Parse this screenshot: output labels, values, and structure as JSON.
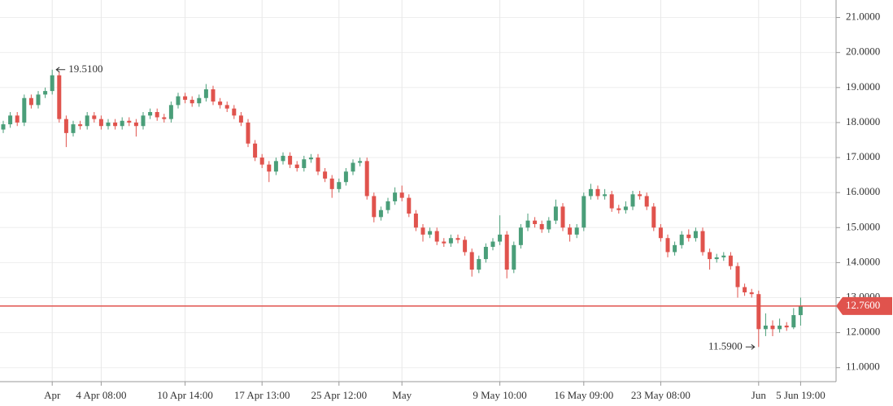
{
  "chart_data": {
    "type": "candlestick",
    "categories": [
      null,
      null,
      null,
      null,
      null,
      null,
      null,
      "Apr",
      null,
      null,
      null,
      null,
      null,
      null,
      "4 Apr 08:00",
      null,
      null,
      null,
      null,
      null,
      null,
      null,
      null,
      null,
      null,
      null,
      "10 Apr 14:00",
      null,
      null,
      null,
      null,
      null,
      null,
      null,
      null,
      null,
      null,
      "17 Apr 13:00",
      null,
      null,
      null,
      null,
      null,
      null,
      null,
      null,
      null,
      null,
      "25 Apr 12:00",
      null,
      null,
      null,
      null,
      null,
      null,
      null,
      null,
      "May",
      null,
      null,
      null,
      null,
      null,
      null,
      null,
      null,
      null,
      null,
      null,
      null,
      null,
      "9 May 10:00",
      null,
      null,
      null,
      null,
      null,
      null,
      null,
      null,
      null,
      null,
      null,
      "16 May 09:00",
      null,
      null,
      null,
      null,
      null,
      null,
      null,
      null,
      null,
      null,
      "23 May 08:00",
      null,
      null,
      null,
      null,
      null,
      null,
      null,
      null,
      null,
      null,
      null,
      null,
      null,
      "Jun",
      null,
      null,
      null,
      null,
      null,
      "5 Jun 19:00"
    ],
    "open": [
      17.8,
      17.95,
      18.2,
      18.0,
      18.7,
      18.5,
      18.8,
      18.9,
      19.35,
      18.1,
      17.7,
      17.95,
      17.9,
      18.2,
      18.1,
      17.9,
      18.0,
      17.9,
      18.05,
      18.0,
      17.9,
      18.2,
      18.3,
      18.15,
      18.1,
      18.5,
      18.75,
      18.65,
      18.55,
      18.7,
      18.95,
      18.6,
      18.5,
      18.4,
      18.2,
      18.0,
      17.4,
      17.0,
      16.8,
      16.6,
      16.9,
      17.05,
      16.8,
      16.7,
      16.95,
      17.0,
      16.6,
      16.4,
      16.1,
      16.3,
      16.6,
      16.85,
      16.9,
      15.9,
      15.3,
      15.5,
      15.75,
      16.0,
      15.85,
      15.4,
      15.0,
      14.8,
      14.9,
      14.6,
      14.55,
      14.7,
      14.65,
      14.3,
      13.8,
      14.1,
      14.45,
      14.6,
      14.8,
      13.8,
      14.5,
      15.0,
      15.2,
      15.1,
      14.95,
      15.2,
      15.6,
      15.0,
      14.8,
      15.0,
      15.9,
      16.1,
      15.9,
      15.95,
      15.55,
      15.5,
      15.6,
      15.95,
      15.9,
      15.6,
      15.0,
      14.7,
      14.3,
      14.5,
      14.8,
      14.7,
      14.9,
      14.3,
      14.1,
      14.15,
      14.2,
      13.9,
      13.3,
      13.15,
      13.1,
      12.1,
      12.2,
      12.1,
      12.2,
      12.15,
      12.5
    ],
    "high": [
      18.05,
      18.3,
      18.3,
      18.8,
      18.8,
      18.9,
      19.0,
      19.51,
      19.45,
      18.2,
      18.05,
      18.05,
      18.3,
      18.3,
      18.2,
      18.1,
      18.1,
      18.15,
      18.15,
      18.1,
      18.3,
      18.4,
      18.4,
      18.25,
      18.6,
      18.85,
      18.85,
      18.75,
      18.8,
      19.1,
      19.05,
      18.7,
      18.6,
      18.5,
      18.3,
      18.1,
      17.5,
      17.1,
      16.9,
      17.0,
      17.15,
      17.15,
      16.9,
      17.05,
      17.1,
      17.1,
      16.7,
      16.5,
      16.4,
      16.7,
      16.95,
      17.0,
      17.0,
      16.0,
      15.6,
      15.85,
      16.15,
      16.2,
      15.95,
      15.5,
      15.1,
      15.0,
      15.0,
      14.7,
      14.8,
      14.8,
      14.75,
      14.4,
      14.2,
      14.55,
      14.7,
      15.35,
      14.9,
      14.6,
      15.1,
      15.4,
      15.3,
      15.2,
      15.3,
      15.8,
      15.7,
      15.1,
      15.1,
      16.0,
      16.25,
      16.2,
      16.1,
      16.05,
      15.65,
      15.75,
      16.05,
      16.05,
      16.0,
      15.7,
      15.1,
      14.8,
      14.6,
      14.9,
      14.95,
      15.0,
      15.0,
      14.4,
      14.25,
      14.3,
      14.3,
      14.0,
      13.4,
      13.25,
      13.2,
      12.55,
      12.35,
      12.4,
      12.3,
      12.7,
      13.0
    ],
    "low": [
      17.7,
      17.85,
      17.9,
      17.9,
      18.4,
      18.4,
      18.7,
      18.8,
      18.0,
      17.3,
      17.6,
      17.8,
      17.8,
      18.0,
      17.8,
      17.8,
      17.8,
      17.8,
      17.9,
      17.6,
      17.8,
      18.1,
      18.05,
      18.0,
      18.0,
      18.4,
      18.55,
      18.45,
      18.45,
      18.6,
      18.5,
      18.4,
      18.3,
      18.1,
      17.9,
      17.3,
      16.9,
      16.7,
      16.3,
      16.5,
      16.8,
      16.7,
      16.6,
      16.6,
      16.85,
      16.5,
      16.3,
      15.85,
      16.0,
      16.2,
      16.5,
      16.75,
      15.8,
      15.15,
      15.2,
      15.4,
      15.65,
      15.75,
      15.3,
      14.9,
      14.6,
      14.7,
      14.5,
      14.45,
      14.45,
      14.55,
      14.2,
      13.6,
      13.7,
      14.0,
      14.35,
      14.5,
      13.55,
      13.7,
      14.4,
      14.9,
      15.0,
      14.85,
      14.85,
      15.1,
      14.9,
      14.6,
      14.7,
      14.9,
      15.8,
      15.8,
      15.8,
      15.45,
      15.4,
      15.4,
      15.5,
      15.8,
      15.5,
      14.9,
      14.6,
      14.15,
      14.2,
      14.4,
      14.6,
      14.6,
      14.2,
      13.8,
      14.0,
      14.05,
      13.8,
      13.0,
      13.05,
      13.0,
      11.59,
      11.9,
      11.9,
      12.0,
      12.05,
      12.1,
      12.2
    ],
    "close": [
      17.95,
      18.2,
      18.0,
      18.7,
      18.5,
      18.8,
      18.9,
      19.35,
      18.1,
      17.7,
      17.95,
      17.9,
      18.2,
      18.1,
      17.9,
      18.0,
      17.9,
      18.05,
      18.0,
      17.9,
      18.2,
      18.3,
      18.15,
      18.1,
      18.5,
      18.75,
      18.65,
      18.55,
      18.7,
      18.95,
      18.6,
      18.5,
      18.4,
      18.2,
      18.0,
      17.4,
      17.0,
      16.8,
      16.6,
      16.9,
      17.05,
      16.8,
      16.7,
      16.95,
      17.0,
      16.6,
      16.4,
      16.1,
      16.3,
      16.6,
      16.85,
      16.9,
      15.9,
      15.3,
      15.5,
      15.75,
      16.0,
      15.85,
      15.4,
      15.0,
      14.8,
      14.9,
      14.6,
      14.55,
      14.7,
      14.65,
      14.3,
      13.8,
      14.1,
      14.45,
      14.6,
      14.8,
      13.8,
      14.5,
      15.0,
      15.2,
      15.1,
      14.95,
      15.2,
      15.6,
      15.0,
      14.8,
      15.0,
      15.9,
      16.1,
      15.9,
      15.95,
      15.55,
      15.5,
      15.6,
      15.95,
      15.9,
      15.6,
      15.0,
      14.7,
      14.3,
      14.5,
      14.8,
      14.7,
      14.9,
      14.3,
      14.1,
      14.15,
      14.2,
      13.9,
      13.3,
      13.15,
      13.1,
      12.1,
      12.2,
      12.1,
      12.2,
      12.15,
      12.5,
      12.76
    ],
    "up_color": "#4a9e79",
    "down_color": "#e0534d",
    "ylim": [
      10.6,
      21.5
    ],
    "yticks": [
      {
        "value": 11,
        "label": "11.0000"
      },
      {
        "value": 12,
        "label": "12.0000"
      },
      {
        "value": 13,
        "label": "13.0000"
      },
      {
        "value": 14,
        "label": "14.0000"
      },
      {
        "value": 15,
        "label": "15.0000"
      },
      {
        "value": 16,
        "label": "16.0000"
      },
      {
        "value": 17,
        "label": "17.0000"
      },
      {
        "value": 18,
        "label": "18.0000"
      },
      {
        "value": 19,
        "label": "19.0000"
      },
      {
        "value": 20,
        "label": "20.0000"
      },
      {
        "value": 21,
        "label": "21.0000"
      }
    ],
    "grid": true,
    "annotations": [
      {
        "label": "19.5100",
        "value": 19.51,
        "at": "high"
      },
      {
        "label": "11.5900",
        "value": 11.59,
        "at": "low"
      }
    ],
    "last_price": {
      "value": 12.76,
      "label": "12.7600",
      "color": "#e0534d"
    }
  }
}
